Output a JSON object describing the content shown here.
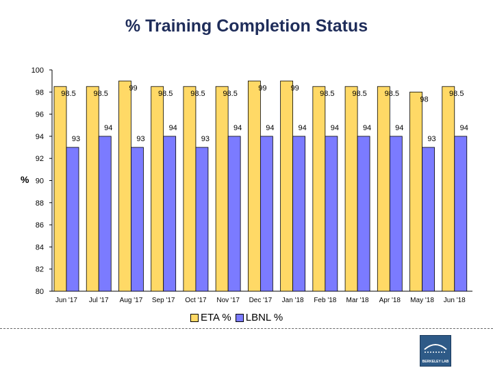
{
  "chart_data": {
    "type": "bar",
    "title": "% Training Completion Status",
    "ylabel": "%",
    "xlabel": "",
    "ylim": [
      80,
      100
    ],
    "yticks": [
      80,
      82,
      84,
      86,
      88,
      90,
      92,
      94,
      96,
      98,
      100
    ],
    "grid": false,
    "legend": "bottom",
    "categories": [
      "Jun '17",
      "Jul '17",
      "Aug '17",
      "Sep '17",
      "Oct '17",
      "Nov '17",
      "Dec '17",
      "Jan '18",
      "Feb '18",
      "Mar '18",
      "Apr '18",
      "May '18",
      "Jun '18"
    ],
    "series": [
      {
        "name": "ETA %",
        "color": "#ffd966",
        "values": [
          98.5,
          98.5,
          99,
          98.5,
          98.5,
          98.5,
          99,
          99,
          98.5,
          98.5,
          98.5,
          98,
          98.5
        ]
      },
      {
        "name": "LBNL %",
        "color": "#7b7bff",
        "values": [
          93,
          94,
          93,
          94,
          93,
          94,
          94,
          94,
          94,
          94,
          94,
          93,
          94
        ]
      }
    ]
  },
  "logo": {
    "text": "BERKELEY LAB",
    "icon": "berkeley-lab-logo"
  }
}
